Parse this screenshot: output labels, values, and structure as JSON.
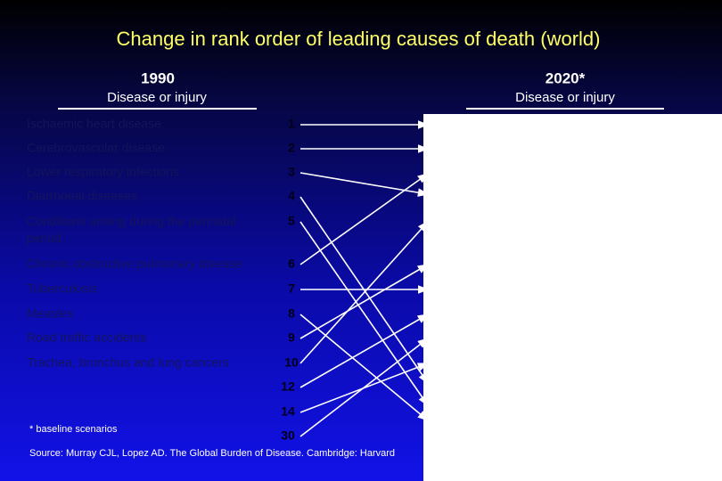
{
  "title": "Change in rank order of leading causes of death (world)",
  "left": {
    "year": "1990",
    "column_header": "Disease or injury",
    "rows": [
      {
        "label": "Ischaemic heart disease",
        "rank": 1
      },
      {
        "label": "Cerebrovascular disease",
        "rank": 2
      },
      {
        "label": "Lower respiratory infections",
        "rank": 3
      },
      {
        "label": "Diarrhoeal diseases",
        "rank": 4
      },
      {
        "label": "Conditions arising during the perinatal period",
        "rank": 5
      },
      {
        "label": "Chronic obstructive pulmonary disease",
        "rank": 6
      },
      {
        "label": "Tuberculosis",
        "rank": 7
      },
      {
        "label": "Measles",
        "rank": 8
      },
      {
        "label": "Road traffic accidents",
        "rank": 9
      },
      {
        "label": "Trachea, bronchus and lung cancers",
        "rank": 10
      }
    ],
    "extra_ranks": [
      12,
      14,
      30
    ]
  },
  "right": {
    "year": "2020*",
    "column_header": "Disease or injury"
  },
  "footnote": "* baseline scenarios",
  "source": "Source: Murray CJL, Lopez AD. The Global Burden of Disease. Cambridge: Harvard"
}
